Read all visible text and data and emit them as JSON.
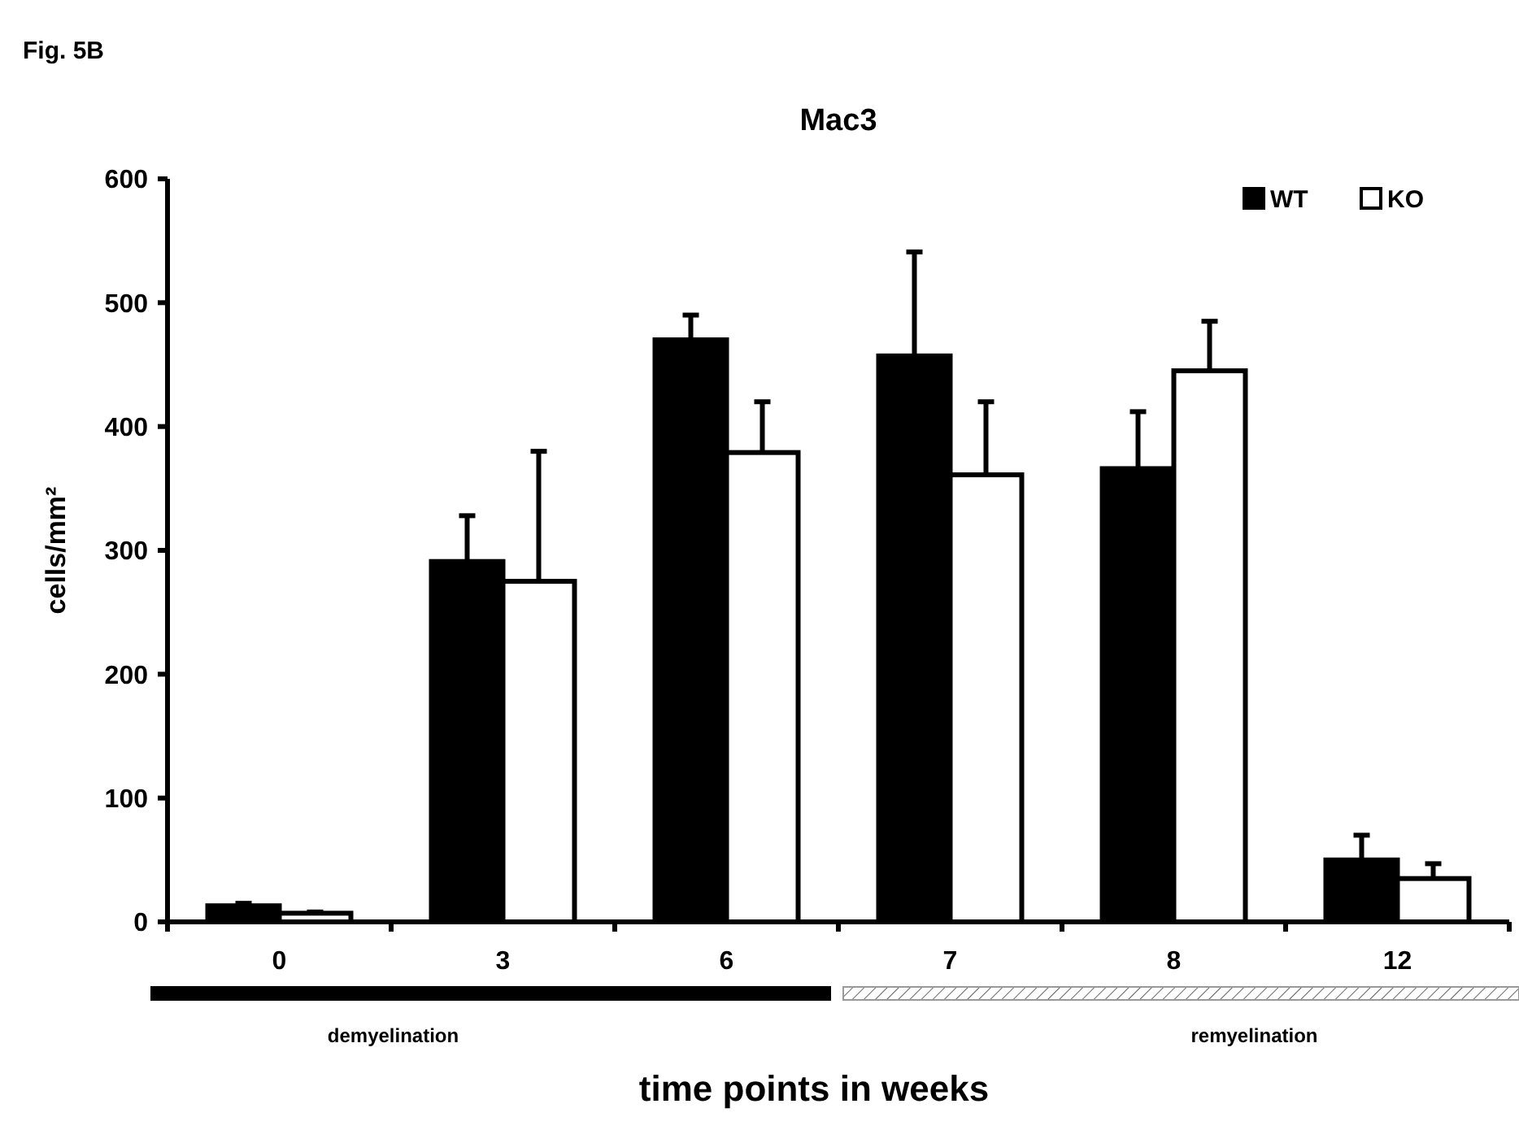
{
  "chart_data": {
    "type": "bar",
    "title": "Mac3",
    "xlabel": "time points in weeks",
    "ylabel": "cells/mm²",
    "annotations": [
      "Fig. 5B",
      "demyelination",
      "remyelination"
    ],
    "categories": [
      "0",
      "3",
      "6",
      "7",
      "8",
      "12"
    ],
    "series": [
      {
        "name": "WT",
        "color": "#000000",
        "values": [
          13,
          291,
          470,
          457,
          366,
          50
        ],
        "errors": [
          [
            13,
            15
          ],
          [
            291,
            328
          ],
          [
            470,
            490
          ],
          [
            457,
            541
          ],
          [
            366,
            412
          ],
          [
            50,
            70
          ]
        ]
      },
      {
        "name": "KO",
        "color": "#ffffff",
        "values": [
          7,
          275,
          379,
          361,
          445,
          35
        ],
        "errors": [
          [
            7,
            8
          ],
          [
            275,
            380
          ],
          [
            379,
            420
          ],
          [
            361,
            420
          ],
          [
            445,
            485
          ],
          [
            35,
            47
          ]
        ]
      }
    ],
    "ylim": [
      0,
      600
    ],
    "yticks": [
      0,
      100,
      200,
      300,
      400,
      500,
      600
    ],
    "legend": "top right",
    "grid": false
  }
}
